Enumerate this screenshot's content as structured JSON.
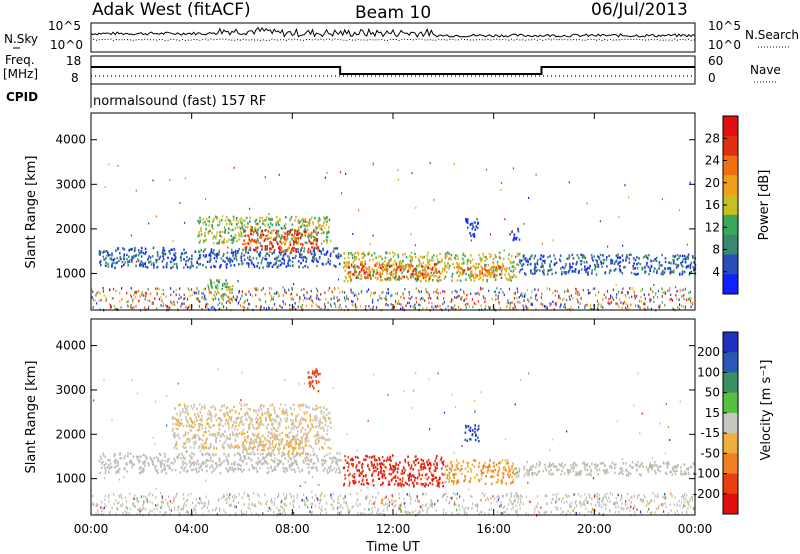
{
  "header": {
    "station": "Adak West (fitACF)",
    "beam": "Beam 10",
    "date": "06/Jul/2013"
  },
  "strips": {
    "nsky_label": "N.Sky",
    "nsky_ticks": [
      "10^5",
      "10^0"
    ],
    "nsearch_label": "N.Search",
    "nsearch_ticks": [
      "10^5",
      "10^0"
    ],
    "freq_label": "Freq.",
    "freq_unit": "[MHz]",
    "freq_ticks": [
      "18",
      "8"
    ],
    "nave_label": "Nave",
    "nave_ticks": [
      "60",
      "0"
    ],
    "cpid_label": "CPID",
    "cpid_text": "normalsound (fast) 157 RF"
  },
  "colors": {
    "power_scale": [
      "#1020ff",
      "#2850b8",
      "#3a8870",
      "#3aa85a",
      "#c8c020",
      "#f0a018",
      "#f07010",
      "#e03010",
      "#e01010"
    ],
    "velocity_scale": [
      "#2030c0",
      "#2858b8",
      "#3a9060",
      "#58c040",
      "#c8c8c0",
      "#f0b040",
      "#f08020",
      "#e84010",
      "#e01010"
    ],
    "trace": "#000000",
    "ground_scatter": "#bdbdb5"
  },
  "chart_data": [
    {
      "type": "heatmap",
      "name": "power",
      "ylabel": "Slant Range [km]",
      "yticks": [
        "1000",
        "2000",
        "3000",
        "4000"
      ],
      "ylim": [
        180,
        4600
      ],
      "xlim": [
        0,
        24
      ],
      "colorbar": {
        "label": "Power [dB]",
        "ticks": [
          "4",
          "8",
          "12",
          "16",
          "20",
          "24",
          "28"
        ],
        "range": [
          0,
          32
        ]
      },
      "features": [
        {
          "t0": 0.3,
          "t1": 9.9,
          "r0": 1150,
          "r1": 1600,
          "level": 6
        },
        {
          "t0": 4.2,
          "t1": 9.5,
          "r0": 1700,
          "r1": 2300,
          "level": 14
        },
        {
          "t0": 6.0,
          "t1": 9.0,
          "r0": 1500,
          "r1": 2000,
          "level": 26
        },
        {
          "t0": 4.6,
          "t1": 5.6,
          "r0": 400,
          "r1": 900,
          "level": 14
        },
        {
          "t0": 10.0,
          "t1": 17.0,
          "r0": 850,
          "r1": 1500,
          "level": 16
        },
        {
          "t0": 10.2,
          "t1": 13.8,
          "r0": 900,
          "r1": 1250,
          "level": 25
        },
        {
          "t0": 14.5,
          "t1": 16.4,
          "r0": 950,
          "r1": 1200,
          "level": 23
        },
        {
          "t0": 17.0,
          "t1": 24.0,
          "r0": 1000,
          "r1": 1450,
          "level": 6
        },
        {
          "t0": 14.8,
          "t1": 15.4,
          "r0": 1850,
          "r1": 2250,
          "level": 3
        },
        {
          "t0": 16.6,
          "t1": 17.0,
          "r0": 1750,
          "r1": 2050,
          "level": 2
        }
      ]
    },
    {
      "type": "heatmap",
      "name": "velocity",
      "xlabel": "Time UT",
      "ylabel": "Slant Range [km]",
      "xticks": [
        "00:00",
        "04:00",
        "08:00",
        "12:00",
        "16:00",
        "20:00",
        "00:00"
      ],
      "yticks": [
        "1000",
        "2000",
        "3000",
        "4000"
      ],
      "ylim": [
        180,
        4600
      ],
      "xlim": [
        0,
        24
      ],
      "colorbar": {
        "label": "Velocity [m s⁻¹]",
        "ticks": [
          "200",
          "100",
          "50",
          "15",
          "-15",
          "-50",
          "-100",
          "-200"
        ],
        "range": [
          -250,
          250
        ]
      },
      "features": [
        {
          "t0": 0.3,
          "t1": 9.9,
          "r0": 1150,
          "r1": 1600,
          "vel": 0
        },
        {
          "t0": 3.2,
          "t1": 9.5,
          "r0": 1700,
          "r1": 2700,
          "vel": -25
        },
        {
          "t0": 6.0,
          "t1": 8.6,
          "r0": 1550,
          "r1": 2000,
          "vel": -40
        },
        {
          "t0": 10.0,
          "t1": 14.0,
          "r0": 850,
          "r1": 1550,
          "vel": -220
        },
        {
          "t0": 14.0,
          "t1": 16.8,
          "r0": 900,
          "r1": 1450,
          "vel": -90
        },
        {
          "t0": 16.8,
          "t1": 17.6,
          "r0": 1050,
          "r1": 1300,
          "vel": 30
        },
        {
          "t0": 17.2,
          "t1": 24.0,
          "r0": 1100,
          "r1": 1400,
          "vel": 0
        },
        {
          "t0": 14.8,
          "t1": 15.4,
          "r0": 1850,
          "r1": 2250,
          "vel": 220
        },
        {
          "t0": 8.6,
          "t1": 9.1,
          "r0": 3000,
          "r1": 3500,
          "vel": -200
        }
      ]
    }
  ]
}
